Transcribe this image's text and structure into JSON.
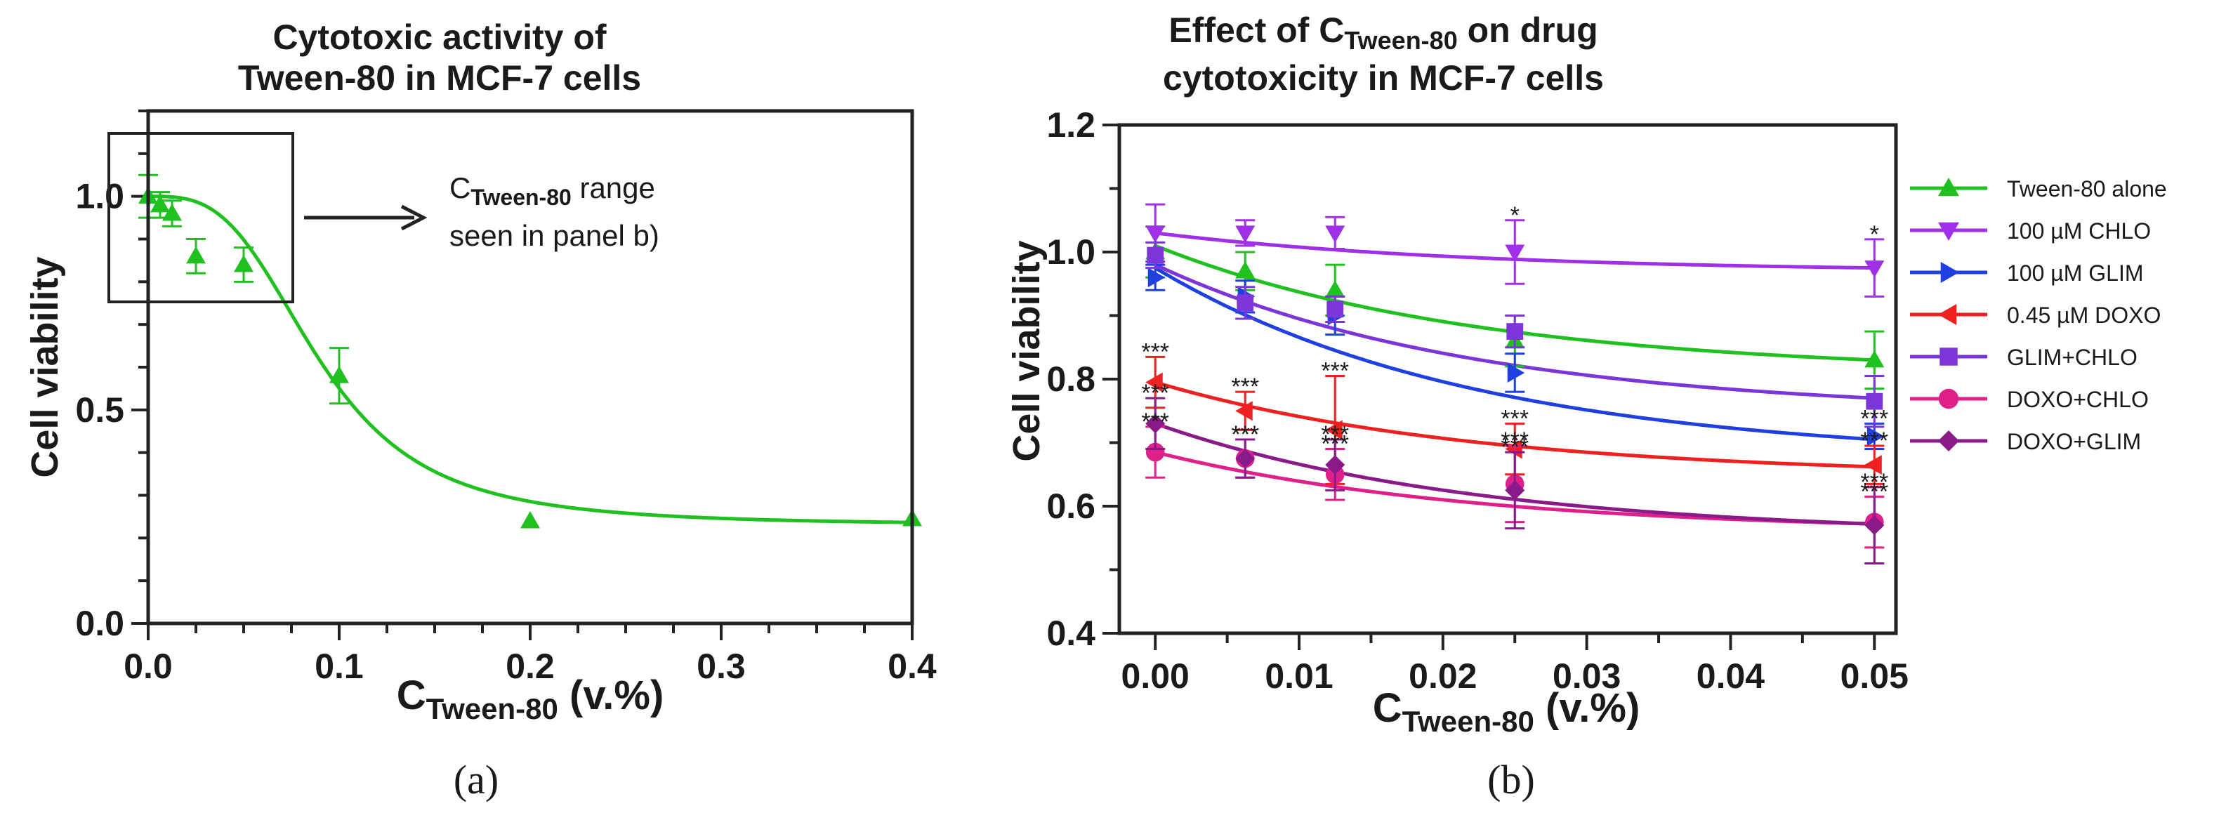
{
  "chart_data": [
    {
      "panel_label": "(a)",
      "type": "scatter",
      "title": "Cytotoxic activity of Tween-80 in MCF-7 cells",
      "title_lines": [
        "Cytotoxic activity of",
        "Tween-80 in MCF-7 cells"
      ],
      "xlabel": {
        "main": "C",
        "sub": "Tween-80",
        "rest": " (v.%)"
      },
      "ylabel": "Cell viability",
      "xlim": [
        0,
        0.4
      ],
      "ylim": [
        0,
        1.2
      ],
      "xticks": [
        0,
        0.1,
        0.2,
        0.3,
        0.4
      ],
      "xtick_labels": [
        "0.0",
        "0.1",
        "0.2",
        "0.3",
        "0.4"
      ],
      "yticks": [
        0,
        0.5,
        1.0
      ],
      "ytick_labels": [
        "0.0",
        "0.5",
        "1.0"
      ],
      "color": "#1fc01f",
      "series": [
        {
          "marker": "triangle-up",
          "x": [
            0,
            0.00625,
            0.0125,
            0.025,
            0.05,
            0.1,
            0.2,
            0.4
          ],
          "y": [
            1.0,
            0.98,
            0.96,
            0.86,
            0.84,
            0.58,
            0.24,
            0.245
          ],
          "err": [
            0.05,
            0.03,
            0.03,
            0.04,
            0.04,
            0.065,
            0,
            0
          ]
        }
      ],
      "fit": {
        "top": 1.0,
        "bottom": 0.23,
        "ec50": 0.09,
        "hill": 3.2
      },
      "annotation": {
        "main": "C",
        "sub": "Tween-80",
        "line1_rest": " range",
        "line2": "seen in panel b)"
      }
    },
    {
      "panel_label": "(b)",
      "type": "scatter",
      "title": "Effect of C Tween-80 on drug cytotoxicity in MCF-7 cells",
      "title_line1": {
        "pre": "Effect of C",
        "sub": "Tween-80",
        "post": " on drug"
      },
      "title_line2": "cytotoxicity in MCF-7 cells",
      "xlabel": {
        "main": "C",
        "sub": "Tween-80",
        "rest": " (v.%)"
      },
      "ylabel": "Cell viability",
      "xlim": [
        -0.0025,
        0.0515
      ],
      "ylim": [
        0.4,
        1.2
      ],
      "xticks": [
        0,
        0.01,
        0.02,
        0.03,
        0.04,
        0.05
      ],
      "xtick_labels": [
        "0.00",
        "0.01",
        "0.02",
        "0.03",
        "0.04",
        "0.05"
      ],
      "yticks": [
        0.4,
        0.6,
        0.8,
        1.0,
        1.2
      ],
      "ytick_labels": [
        "0.4",
        "0.6",
        "0.8",
        "1.0",
        "1.2"
      ],
      "x": [
        0,
        0.00625,
        0.0125,
        0.025,
        0.05
      ],
      "series": [
        {
          "name": "Tween-80 alone",
          "color": "#1fc01f",
          "marker": "triangle-up",
          "y": [
            1.0,
            0.97,
            0.94,
            0.86,
            0.83
          ],
          "err": [
            0.04,
            0.03,
            0.04,
            0.04,
            0.045
          ],
          "fit": [
            1.01,
            0.83
          ],
          "stars": [
            "",
            "",
            "",
            "",
            ""
          ]
        },
        {
          "name": "100 µM CHLO",
          "color": "#a030e8",
          "marker": "triangle-down",
          "y": [
            1.03,
            1.03,
            1.03,
            1.0,
            0.975
          ],
          "err": [
            0.045,
            0.02,
            0.025,
            0.05,
            0.045
          ],
          "fit": [
            1.03,
            0.975
          ],
          "stars": [
            "",
            "",
            "",
            "*",
            "*"
          ]
        },
        {
          "name": "100 µM GLIM",
          "color": "#1f3fe0",
          "marker": "triangle-right",
          "y": [
            0.96,
            0.93,
            0.9,
            0.81,
            0.71
          ],
          "err": [
            0.02,
            0.025,
            0.03,
            0.03,
            0.02
          ],
          "fit": [
            0.975,
            0.705
          ],
          "stars": [
            "",
            "",
            "",
            "",
            "***"
          ]
        },
        {
          "name": "0.45 µM DOXO",
          "color": "#ee2020",
          "marker": "triangle-left",
          "y": [
            0.795,
            0.75,
            0.72,
            0.69,
            0.665
          ],
          "err": [
            0.04,
            0.03,
            0.085,
            0.04,
            0.03
          ],
          "fit": [
            0.795,
            0.662
          ],
          "stars": [
            "***",
            "***",
            "***",
            "***",
            "***"
          ]
        },
        {
          "name": "GLIM+CHLO",
          "color": "#7b35d8",
          "marker": "square",
          "y": [
            0.995,
            0.92,
            0.91,
            0.875,
            0.765
          ],
          "err": [
            0.02,
            0.025,
            0.02,
            0.025,
            0.04
          ],
          "fit": [
            0.98,
            0.77
          ],
          "stars": [
            "",
            "",
            "",
            "",
            ""
          ]
        },
        {
          "name": "DOXO+CHLO",
          "color": "#e0208a",
          "marker": "circle",
          "y": [
            0.685,
            0.675,
            0.65,
            0.635,
            0.575
          ],
          "err": [
            0.04,
            0.03,
            0.04,
            0.06,
            0.04
          ],
          "fit": [
            0.685,
            0.572
          ],
          "stars": [
            "***",
            "***",
            "***",
            "***",
            "***"
          ]
        },
        {
          "name": "DOXO+GLIM",
          "color": "#8a1a8a",
          "marker": "diamond",
          "y": [
            0.73,
            0.675,
            0.665,
            0.625,
            0.57
          ],
          "err": [
            0.04,
            0.03,
            0.04,
            0.06,
            0.06
          ],
          "fit": [
            0.73,
            0.572
          ],
          "stars": [
            "***",
            "***",
            "***",
            "***",
            "***"
          ]
        }
      ]
    }
  ]
}
